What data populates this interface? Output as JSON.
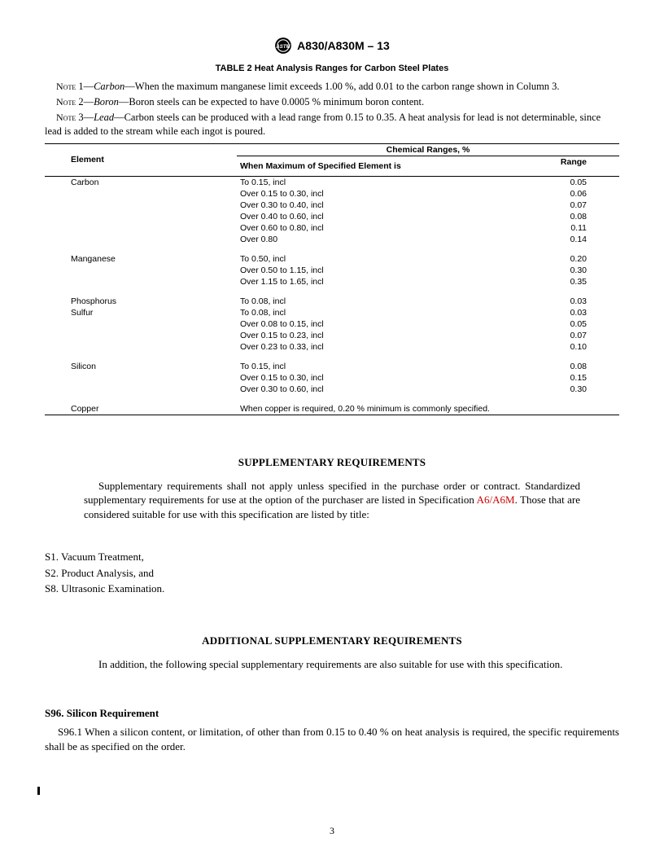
{
  "header": {
    "spec": "A830/A830M – 13"
  },
  "table": {
    "title": "TABLE 2 Heat Analysis Ranges for Carbon Steel Plates",
    "super_header": "Chemical Ranges, %",
    "col_element": "Element",
    "col_spec": "When Maximum of Specified Element is",
    "col_range": "Range",
    "groups": [
      {
        "element": "Carbon",
        "rows": [
          {
            "spec": "To 0.15, incl",
            "range": "0.05"
          },
          {
            "spec": "Over 0.15 to 0.30, incl",
            "range": "0.06"
          },
          {
            "spec": "Over 0.30 to 0.40, incl",
            "range": "0.07"
          },
          {
            "spec": "Over 0.40 to 0.60, incl",
            "range": "0.08"
          },
          {
            "spec": "Over 0.60 to 0.80, incl",
            "range": "0.11"
          },
          {
            "spec": "Over 0.80",
            "range": "0.14"
          }
        ]
      },
      {
        "element": "Manganese",
        "rows": [
          {
            "spec": "To 0.50, incl",
            "range": "0.20"
          },
          {
            "spec": "Over 0.50 to 1.15, incl",
            "range": "0.30"
          },
          {
            "spec": "Over 1.15 to 1.65, incl",
            "range": "0.35"
          }
        ]
      },
      {
        "element": "Phosphorus",
        "rows": [
          {
            "spec": "To 0.08, incl",
            "range": "0.03"
          }
        ]
      },
      {
        "element": "Sulfur",
        "no_gap": true,
        "rows": [
          {
            "spec": "To 0.08, incl",
            "range": "0.03"
          },
          {
            "spec": "Over 0.08 to 0.15, incl",
            "range": "0.05"
          },
          {
            "spec": "Over 0.15 to 0.23, incl",
            "range": "0.07"
          },
          {
            "spec": "Over 0.23 to 0.33, incl",
            "range": "0.10"
          }
        ]
      },
      {
        "element": "Silicon",
        "rows": [
          {
            "spec": "To 0.15, incl",
            "range": "0.08"
          },
          {
            "spec": "Over 0.15 to 0.30, incl",
            "range": "0.15"
          },
          {
            "spec": "Over 0.30 to 0.60, incl",
            "range": "0.30"
          }
        ]
      },
      {
        "element": "Copper",
        "rows": [
          {
            "spec": "When copper is required, 0.20 % minimum is commonly specified.",
            "range": ""
          }
        ]
      }
    ]
  },
  "notes": {
    "n1_label": "Note",
    "n1_num": " 1—",
    "n1_elem": "Carbon",
    "n1_text": "—When the maximum manganese limit exceeds 1.00 %, add 0.01 to the carbon range shown in Column 3.",
    "n2_label": "Note",
    "n2_num": " 2—",
    "n2_elem": "Boron",
    "n2_text": "—Boron steels can be expected to have 0.0005 % minimum boron content.",
    "n3_label": "Note",
    "n3_num": " 3—",
    "n3_elem": "Lead",
    "n3_text": "—Carbon steels can be produced with a lead range from 0.15 to 0.35. A heat analysis for lead is not determinable, since lead is added to the stream while each ingot is poured."
  },
  "supp": {
    "heading": "SUPPLEMENTARY REQUIREMENTS",
    "para_pre": "Supplementary requirements shall not apply unless specified in the purchase order or contract. Standardized supplementary requirements for use at the option of the purchaser are listed in Specification ",
    "link": "A6/A6M",
    "para_post": ". Those that are considered suitable for use with this specification are listed by title:",
    "items": {
      "s1": "S1.  Vacuum Treatment,",
      "s2": "S2.  Product Analysis, and",
      "s8": "S8.  Ultrasonic Examination."
    }
  },
  "add_supp": {
    "heading": "ADDITIONAL SUPPLEMENTARY REQUIREMENTS",
    "para": "In addition, the following special supplementary requirements are also suitable for use with this specification."
  },
  "s96": {
    "heading": "S96.  Silicon Requirement",
    "body": "S96.1 When a silicon content, or limitation, of other than from 0.15 to 0.40 % on heat analysis is required, the specific requirements shall be as specified on the order."
  },
  "page_number": "3"
}
